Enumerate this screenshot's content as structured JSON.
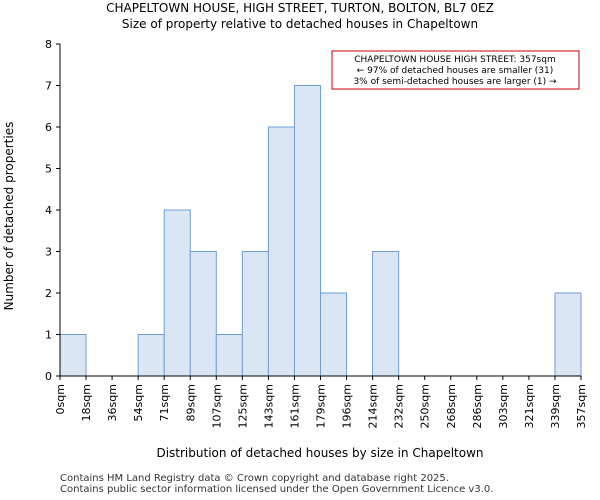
{
  "chart_data": {
    "type": "bar",
    "title": "CHAPELTOWN HOUSE, HIGH STREET, TURTON, BOLTON, BL7 0EZ",
    "subtitle": "Size of property relative to detached houses in Chapeltown",
    "xlabel": "Distribution of detached houses by size in Chapeltown",
    "ylabel": "Number of detached properties",
    "ylim": [
      0,
      8
    ],
    "yticks": [
      "0",
      "1",
      "2",
      "3",
      "4",
      "5",
      "6",
      "7",
      "8"
    ],
    "bin_edges": [
      "0sqm",
      "18sqm",
      "36sqm",
      "54sqm",
      "71sqm",
      "89sqm",
      "107sqm",
      "125sqm",
      "143sqm",
      "161sqm",
      "179sqm",
      "196sqm",
      "214sqm",
      "232sqm",
      "250sqm",
      "268sqm",
      "286sqm",
      "303sqm",
      "321sqm",
      "339sqm",
      "357sqm"
    ],
    "values": [
      1,
      0,
      0,
      1,
      4,
      3,
      1,
      3,
      6,
      7,
      2,
      0,
      3,
      0,
      0,
      0,
      0,
      0,
      0,
      2
    ],
    "bar_color": "#dbe6f5",
    "bar_edge_color": "#6e9ed1",
    "annotation": {
      "lines": [
        "CHAPELTOWN HOUSE HIGH STREET: 357sqm",
        "← 97% of detached houses are smaller (31)",
        "3% of semi-detached houses are larger (1) →"
      ],
      "border_color": "#cc0000"
    },
    "grid": false
  },
  "footer": {
    "line1": "Contains HM Land Registry data © Crown copyright and database right 2025.",
    "line2": "Contains public sector information licensed under the Open Government Licence v3.0."
  }
}
